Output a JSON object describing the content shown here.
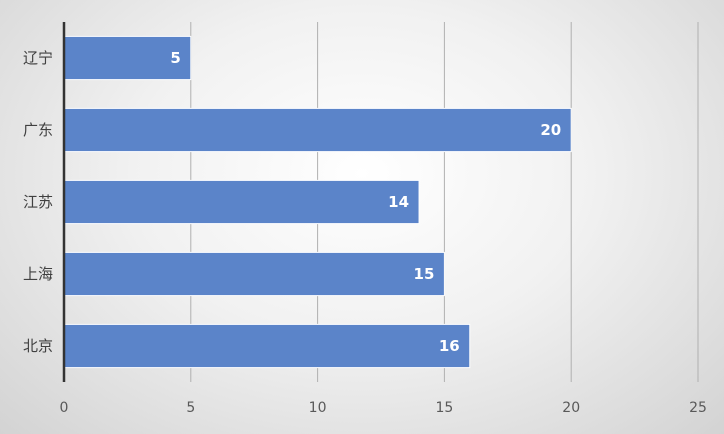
{
  "chart_data": {
    "type": "bar",
    "orientation": "horizontal",
    "categories": [
      "辽宁",
      "广东",
      "江苏",
      "上海",
      "北京"
    ],
    "values": [
      5,
      20,
      14,
      15,
      16
    ],
    "title": "",
    "xlabel": "",
    "ylabel": "",
    "xlim": [
      0,
      25
    ],
    "x_ticks": [
      0,
      5,
      10,
      15,
      20,
      25
    ],
    "data_labels": true,
    "grid": true,
    "legend": "none"
  },
  "colors": {
    "bar_fill": "#5b84c9",
    "bar_stroke": "#ffffff",
    "grid": "#b0b0b0",
    "axis": "#333333"
  }
}
